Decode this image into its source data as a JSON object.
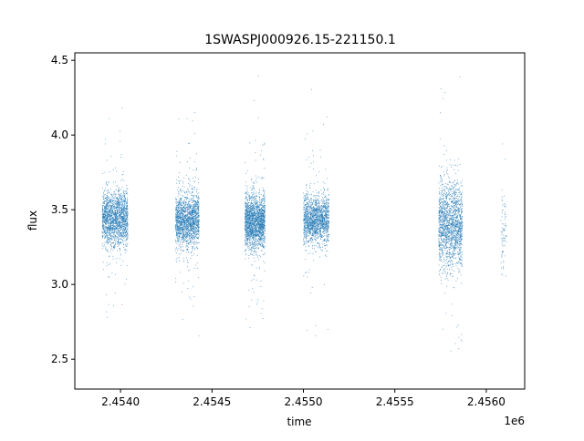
{
  "chart_data": {
    "type": "scatter",
    "title": "1SWASPJ000926.15-221150.1",
    "xlabel": "time",
    "ylabel": "flux",
    "x_offset_label": "1e6",
    "x_tick_labels": [
      "2.4540",
      "2.4545",
      "2.4550",
      "2.4555",
      "2.4560"
    ],
    "x_ticks": [
      2.454,
      2.4545,
      2.455,
      2.4555,
      2.456
    ],
    "y_tick_labels": [
      "2.5",
      "3.0",
      "3.5",
      "4.0",
      "4.5"
    ],
    "y_ticks": [
      2.5,
      3.0,
      3.5,
      4.0,
      4.5
    ],
    "xlim": [
      2.45375,
      2.45621
    ],
    "ylim": [
      2.3,
      4.55
    ],
    "grid": false,
    "legend": "none",
    "marker_color": "#1f77b4",
    "series": [
      {
        "segments": [
          {
            "x_start": 2.4539,
            "x_end": 2.45404,
            "center": 3.44,
            "spread": 0.09,
            "n": 1800
          },
          {
            "x_start": 2.4543,
            "x_end": 2.45443,
            "center": 3.43,
            "spread": 0.09,
            "n": 1700
          },
          {
            "x_start": 2.45468,
            "x_end": 2.45479,
            "center": 3.42,
            "spread": 0.09,
            "n": 1900
          },
          {
            "x_start": 2.455,
            "x_end": 2.45514,
            "center": 3.43,
            "spread": 0.08,
            "n": 1600
          },
          {
            "x_start": 2.45574,
            "x_end": 2.45587,
            "center": 3.4,
            "spread": 0.14,
            "n": 1700
          },
          {
            "x_start": 2.45608,
            "x_end": 2.45611,
            "center": 3.35,
            "spread": 0.15,
            "n": 80
          }
        ]
      }
    ]
  }
}
